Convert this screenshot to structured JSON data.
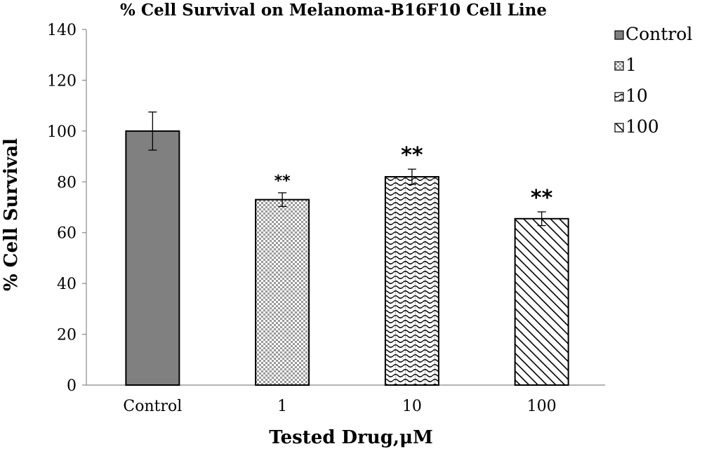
{
  "chart_data": {
    "type": "bar",
    "title": "% Cell Survival on Melanoma-B16F10 Cell Line",
    "xlabel": "Tested Drug,μM",
    "ylabel": "% Cell Survival",
    "categories": [
      "Control",
      "1",
      "10",
      "100"
    ],
    "values": [
      100,
      73,
      82,
      65.5
    ],
    "errors": [
      7.5,
      2.7,
      3,
      2.7
    ],
    "significance": [
      "",
      "**",
      "**",
      "**"
    ],
    "ylim": [
      0,
      140
    ],
    "yticks": [
      "0",
      "20",
      "40",
      "60",
      "80",
      "100",
      "120",
      "140"
    ],
    "grid": false,
    "legend": {
      "placement": "right",
      "entries": [
        "Control",
        "1",
        "10",
        "100"
      ]
    },
    "fills": [
      "solid-gray",
      "checker",
      "wave",
      "diagonal-hatch"
    ],
    "colors": {
      "control_bar": "#808080",
      "bar_outline": "#000000",
      "pattern_ink": "#000000"
    }
  }
}
